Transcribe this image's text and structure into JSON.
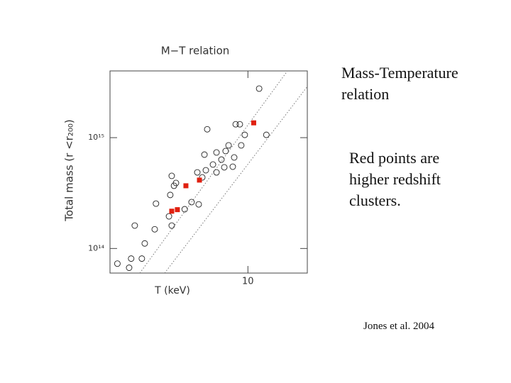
{
  "slide": {
    "heading": "Mass-Temperature relation",
    "note": "Red points are higher redshift clusters.",
    "credit": "Jones et al. 2004"
  },
  "chart_data": {
    "type": "scatter",
    "title": "M−T relation",
    "x_label": "T (keV)",
    "y_label": "Total mass (r <r₂₀₀)",
    "log_x": true,
    "log_y": true,
    "xlim": [
      2,
      20
    ],
    "ylim": [
      60000000000000.0,
      4000000000000000.0
    ],
    "xticks": [
      10
    ],
    "yticks": [
      {
        "value": 100000000000000.0,
        "label": "10¹⁴"
      },
      {
        "value": 1000000000000000.0,
        "label": "10¹⁵"
      }
    ],
    "series": [
      {
        "color": "#222222",
        "marker": "circle",
        "x": [
          2.56,
          2.9,
          2.5,
          3.0,
          3.37,
          3.42,
          3.98,
          4.11,
          4.04,
          4.11,
          4.32,
          4.22,
          4.78,
          5.18,
          5.63,
          5.87,
          6.12,
          6.02,
          6.22,
          6.65,
          6.93,
          7.71,
          7.98,
          7.59,
          8.38,
          8.67,
          9.1,
          9.25,
          9.64,
          8.52,
          12.4,
          11.4,
          6.93,
          2.18,
          2.67,
          5.54,
          7.34
        ],
        "values": [
          81000000000000.0,
          81000000000000.0,
          67000000000000.0,
          111000000000000.0,
          149000000000000.0,
          254000000000000.0,
          195000000000000.0,
          161000000000000.0,
          304000000000000.0,
          452000000000000.0,
          390000000000000.0,
          368000000000000.0,
          226000000000000.0,
          262000000000000.0,
          250000000000000.0,
          438000000000000.0,
          508000000000000.0,
          703000000000000.0,
          1190000000000000.0,
          572000000000000.0,
          735000000000000.0,
          757000000000000.0,
          852000000000000.0,
          540000000000000.0,
          547000000000000.0,
          1320000000000000.0,
          1320000000000000.0,
          852000000000000.0,
          1060000000000000.0,
          663000000000000.0,
          1060000000000000.0,
          2770000000000000.0,
          486000000000000.0,
          73000000000000.0,
          161000000000000.0,
          486000000000000.0,
          634000000000000.0
        ]
      },
      {
        "color": "#e02010",
        "marker": "square",
        "x": [
          4.11,
          4.39,
          4.85,
          5.68,
          10.7
        ],
        "values": [
          217000000000000.0,
          224000000000000.0,
          368000000000000.0,
          414000000000000.0,
          1360000000000000.0
        ]
      }
    ]
  }
}
